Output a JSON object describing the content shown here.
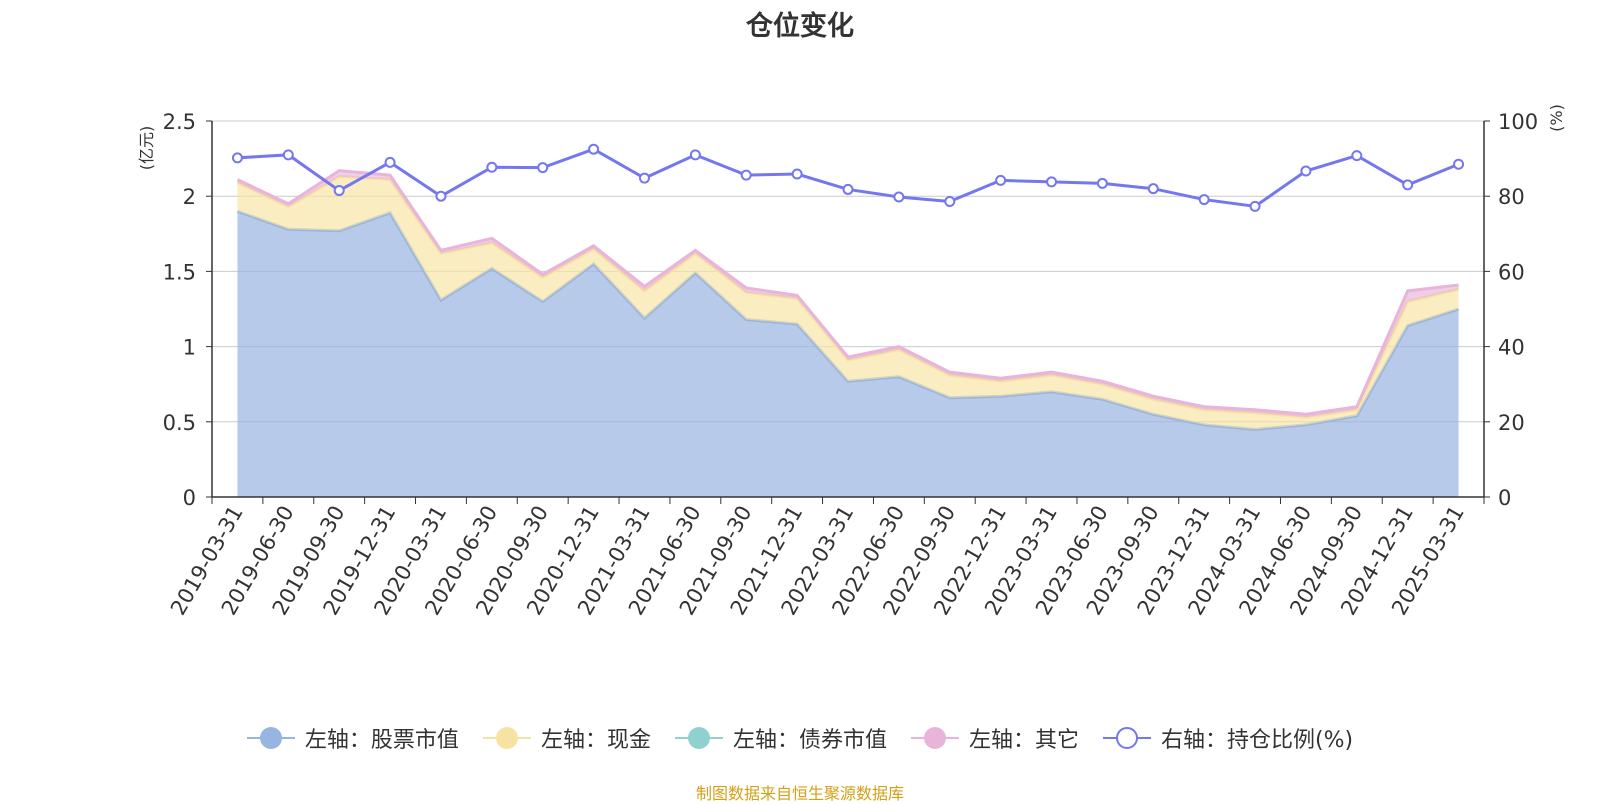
{
  "title": "仓位变化",
  "source": "制图数据来自恒生聚源数据库",
  "colors": {
    "stock": "#98b4e0",
    "cash": "#f7e3a1",
    "bond": "#8fd1cf",
    "other": "#e8b4da",
    "ratio": "#7477f0",
    "axis_unit": "#ff0000",
    "source": "#d4a017"
  },
  "legend": [
    {
      "label": "左轴：股票市值",
      "series": "stock",
      "icon": "filled-circle"
    },
    {
      "label": "左轴：现金",
      "series": "cash",
      "icon": "filled-circle"
    },
    {
      "label": "左轴：债券市值",
      "series": "bond",
      "icon": "filled-circle"
    },
    {
      "label": "左轴：其它",
      "series": "other",
      "icon": "filled-circle"
    },
    {
      "label": "右轴：持仓比例(%)",
      "series": "ratio",
      "icon": "hollow-circle"
    }
  ],
  "chart_data": {
    "type": "area",
    "stacked": true,
    "title": "仓位变化",
    "categories": [
      "2019-03-31",
      "2019-06-30",
      "2019-09-30",
      "2019-12-31",
      "2020-03-31",
      "2020-06-30",
      "2020-09-30",
      "2020-12-31",
      "2021-03-31",
      "2021-06-30",
      "2021-09-30",
      "2021-12-31",
      "2022-03-31",
      "2022-06-30",
      "2022-09-30",
      "2022-12-31",
      "2023-03-31",
      "2023-06-30",
      "2023-09-30",
      "2023-12-31",
      "2024-03-31",
      "2024-06-30",
      "2024-09-30",
      "2024-12-31",
      "2025-03-31"
    ],
    "y_left": {
      "unit": "(亿元)",
      "min": 0,
      "max": 2.5,
      "ticks": [
        "0",
        "0.5",
        "1",
        "1.5",
        "2",
        "2.5"
      ]
    },
    "y_right": {
      "unit": "(%)",
      "min": 0,
      "max": 100,
      "ticks": [
        "0",
        "20",
        "40",
        "60",
        "80",
        "100"
      ]
    },
    "grid": true,
    "legend_position": "bottom",
    "series": [
      {
        "name": "左轴：股票市值",
        "key": "stock",
        "axis": "left",
        "values": [
          1.9,
          1.78,
          1.77,
          1.89,
          1.31,
          1.52,
          1.3,
          1.55,
          1.19,
          1.49,
          1.18,
          1.15,
          0.77,
          0.8,
          0.66,
          0.67,
          0.7,
          0.65,
          0.55,
          0.48,
          0.45,
          0.48,
          0.54,
          1.14,
          1.25
        ]
      },
      {
        "name": "左轴：现金",
        "key": "cash",
        "axis": "left",
        "values": [
          0.19,
          0.15,
          0.36,
          0.22,
          0.31,
          0.17,
          0.16,
          0.1,
          0.18,
          0.13,
          0.18,
          0.17,
          0.14,
          0.18,
          0.15,
          0.1,
          0.11,
          0.1,
          0.1,
          0.1,
          0.11,
          0.05,
          0.04,
          0.16,
          0.13
        ]
      },
      {
        "name": "左轴：债券市值",
        "key": "bond",
        "axis": "left",
        "values": [
          0,
          0,
          0,
          0,
          0,
          0,
          0,
          0,
          0,
          0,
          0,
          0,
          0,
          0,
          0,
          0,
          0,
          0,
          0,
          0,
          0,
          0,
          0,
          0,
          0
        ]
      },
      {
        "name": "左轴：其它",
        "key": "other",
        "axis": "left",
        "values": [
          0.02,
          0.02,
          0.04,
          0.03,
          0.02,
          0.03,
          0.02,
          0.02,
          0.03,
          0.02,
          0.03,
          0.02,
          0.02,
          0.02,
          0.02,
          0.02,
          0.02,
          0.02,
          0.02,
          0.02,
          0.02,
          0.02,
          0.02,
          0.07,
          0.03
        ]
      },
      {
        "name": "右轴：持仓比例(%)",
        "key": "ratio",
        "axis": "right",
        "type": "line",
        "values": [
          90.2,
          91.0,
          81.5,
          89.0,
          80.0,
          87.7,
          87.6,
          92.5,
          84.8,
          91.0,
          85.6,
          85.9,
          81.8,
          79.8,
          78.6,
          84.2,
          83.8,
          83.4,
          82.0,
          79.1,
          77.3,
          86.7,
          90.8,
          83.0,
          88.5
        ]
      }
    ]
  }
}
